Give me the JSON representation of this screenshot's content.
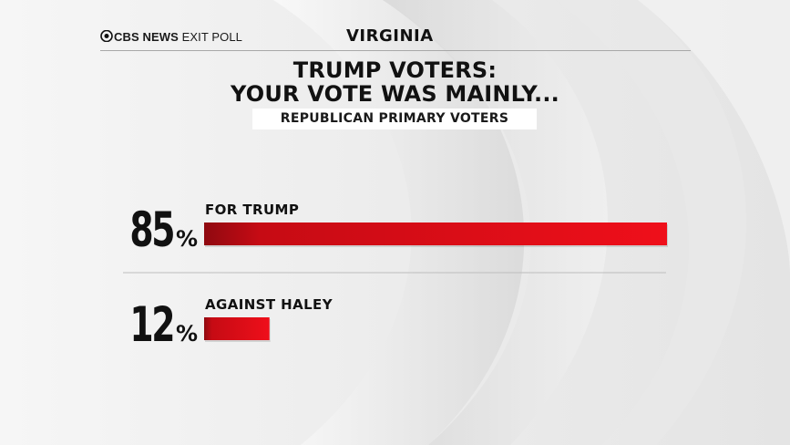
{
  "header": {
    "brand": "CBS NEWS",
    "section": "EXIT POLL",
    "state": "VIRGINIA"
  },
  "title_line1": "TRUMP VOTERS:",
  "title_line2": "YOUR VOTE WAS MAINLY...",
  "subtitle": "REPUBLICAN PRIMARY VOTERS",
  "colors": {
    "bar_dark": "#8f0910",
    "bar_bright": "#ef0f1a",
    "text": "#111111"
  },
  "chart_data": {
    "type": "bar",
    "orientation": "horizontal",
    "unit": "%",
    "xlim": [
      0,
      100
    ],
    "categories": [
      "FOR TRUMP",
      "AGAINST HALEY"
    ],
    "values": [
      85,
      12
    ],
    "value_labels": [
      "85",
      "12"
    ]
  }
}
